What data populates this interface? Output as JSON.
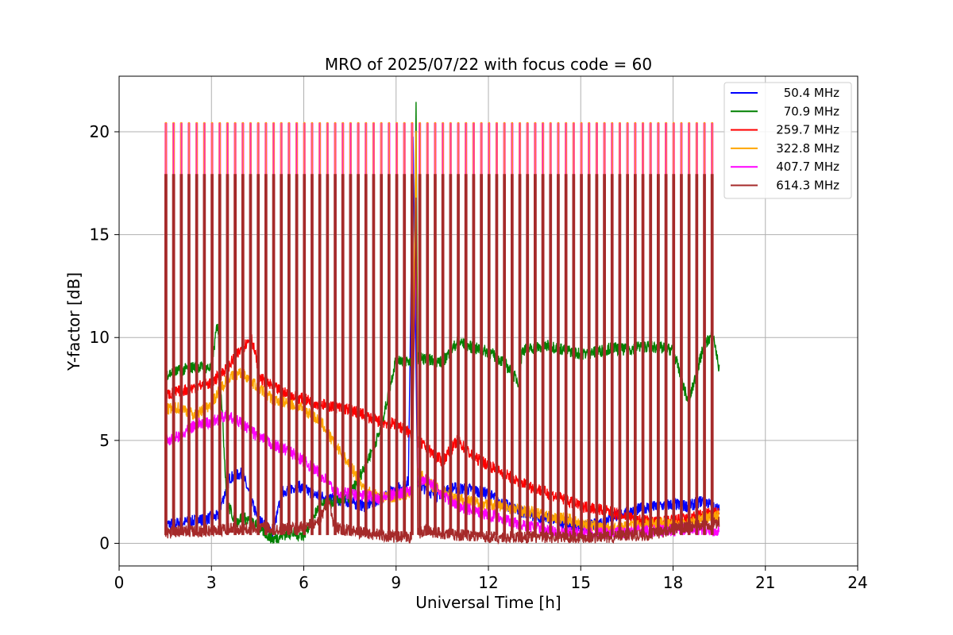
{
  "chart_data": {
    "type": "line",
    "title": "MRO of 2025/07/22 with focus code = 60",
    "xlabel": "Universal Time [h]",
    "ylabel": "Y-factor [dB]",
    "xlim": [
      0,
      24
    ],
    "ylim": [
      -1.1,
      22.7
    ],
    "xticks": [
      0,
      3,
      6,
      9,
      12,
      15,
      18,
      21,
      24
    ],
    "yticks": [
      0,
      5,
      10,
      15,
      20
    ],
    "grid": true,
    "legend_position": "top-right",
    "calibration_pulses": {
      "start_h": 1.5,
      "end_h": 19.3,
      "period_h": 0.25,
      "width_h": 0.04,
      "peak_db": {
        "magenta": 20.4,
        "brown": 17.9
      }
    },
    "series": [
      {
        "name": "50.4 MHz",
        "color": "#0000ff",
        "x": [
          1.5,
          2.5,
          3.2,
          3.6,
          4.0,
          4.5,
          5.0,
          5.3,
          5.8,
          6.3,
          6.8,
          7.5,
          8.0,
          8.5,
          9.0,
          9.4,
          9.55,
          9.62,
          9.7,
          9.8,
          10.3,
          10.8,
          11.5,
          12.0,
          12.5,
          13.0,
          13.5,
          14.0,
          14.5,
          15.0,
          15.5,
          16.0,
          16.5,
          17.0,
          17.5,
          18.0,
          18.5,
          19.0,
          19.5
        ],
        "y": [
          0.9,
          1.1,
          1.3,
          3.2,
          3.4,
          1.2,
          0.5,
          2.5,
          2.8,
          2.4,
          2.2,
          2.0,
          1.8,
          2.2,
          2.6,
          3.0,
          20.0,
          12.0,
          3.0,
          2.8,
          2.3,
          2.7,
          2.6,
          2.4,
          1.9,
          1.6,
          1.3,
          1.2,
          1.0,
          0.8,
          0.9,
          1.3,
          1.5,
          1.7,
          1.8,
          1.9,
          1.8,
          2.1,
          1.6
        ]
      },
      {
        "name": "70.9 MHz",
        "color": "#008000",
        "x": [
          1.5,
          2.0,
          2.5,
          3.0,
          3.2,
          3.5,
          3.8,
          4.0,
          4.5,
          5.0,
          5.5,
          6.0,
          6.5,
          7.0,
          7.5,
          8.0,
          8.5,
          9.0,
          9.5,
          9.6,
          9.65,
          9.7,
          9.8,
          10.5,
          11.0,
          11.5,
          12.0,
          12.5,
          13.0,
          13.1,
          13.5,
          14.0,
          14.5,
          15.0,
          15.5,
          16.0,
          16.5,
          17.0,
          17.5,
          18.0,
          18.5,
          19.0,
          19.3,
          19.5
        ],
        "y": [
          8.2,
          8.4,
          8.6,
          8.5,
          10.8,
          2.0,
          1.0,
          1.3,
          0.8,
          0.2,
          0.5,
          0.4,
          1.8,
          2.0,
          2.3,
          3.8,
          5.5,
          9.0,
          8.8,
          12.5,
          21.5,
          9.0,
          9.0,
          8.8,
          9.8,
          9.5,
          9.3,
          8.8,
          7.8,
          9.4,
          9.5,
          9.6,
          9.4,
          9.2,
          9.3,
          9.5,
          9.4,
          9.6,
          9.5,
          9.4,
          6.8,
          9.6,
          10.2,
          8.4
        ]
      },
      {
        "name": "259.7 MHz",
        "color": "#ff0000",
        "x": [
          1.5,
          2.0,
          2.5,
          3.0,
          3.5,
          4.0,
          4.3,
          4.6,
          5.0,
          5.5,
          6.0,
          6.5,
          7.0,
          7.5,
          8.0,
          8.5,
          9.0,
          9.5,
          9.65,
          9.7,
          10.0,
          10.5,
          11.0,
          11.5,
          12.0,
          12.5,
          13.0,
          13.5,
          14.0,
          14.5,
          15.0,
          15.5,
          16.0,
          16.5,
          17.0,
          17.5,
          18.0,
          18.5,
          19.0,
          19.5
        ],
        "y": [
          7.2,
          7.4,
          7.6,
          7.8,
          8.5,
          9.5,
          10.0,
          8.0,
          7.6,
          7.2,
          7.0,
          6.8,
          6.6,
          6.5,
          6.2,
          5.9,
          5.8,
          5.3,
          15.0,
          5.0,
          4.6,
          4.0,
          5.0,
          4.2,
          3.8,
          3.4,
          3.0,
          2.7,
          2.4,
          2.1,
          1.8,
          1.7,
          1.5,
          1.3,
          1.1,
          1.0,
          1.1,
          1.2,
          1.4,
          1.5
        ]
      },
      {
        "name": "322.8 MHz",
        "color": "#ffa500",
        "x": [
          1.5,
          2.0,
          2.5,
          3.0,
          3.5,
          4.0,
          4.5,
          5.0,
          5.5,
          6.0,
          6.3,
          6.6,
          7.0,
          7.5,
          8.0,
          8.5,
          9.0,
          9.5,
          9.65,
          9.7,
          10.0,
          10.5,
          11.0,
          11.5,
          12.0,
          12.5,
          13.0,
          13.5,
          14.0,
          14.5,
          15.0,
          15.5,
          16.0,
          16.5,
          17.0,
          17.5,
          18.0,
          18.5,
          19.0,
          19.5
        ],
        "y": [
          6.5,
          6.6,
          6.2,
          6.8,
          8.0,
          8.3,
          7.6,
          7.0,
          6.8,
          6.5,
          6.2,
          5.8,
          4.8,
          3.8,
          2.6,
          2.2,
          2.3,
          2.5,
          20.2,
          3.5,
          3.0,
          2.5,
          2.2,
          2.0,
          1.9,
          1.8,
          1.6,
          1.5,
          1.3,
          1.2,
          1.0,
          0.8,
          0.7,
          0.8,
          0.9,
          1.0,
          0.9,
          1.0,
          1.2,
          1.3
        ]
      },
      {
        "name": "407.7 MHz",
        "color": "#ff00ff",
        "x": [
          1.5,
          2.0,
          2.5,
          3.0,
          3.5,
          4.0,
          4.5,
          5.0,
          5.5,
          6.0,
          6.5,
          6.8,
          7.0,
          7.5,
          8.0,
          8.5,
          9.0,
          9.5,
          9.65,
          9.7,
          10.0,
          10.5,
          11.0,
          11.5,
          12.0,
          12.5,
          13.0,
          13.5,
          14.0,
          14.5,
          15.0,
          15.5,
          16.0,
          16.5,
          17.0,
          17.5,
          18.0,
          18.5,
          19.0,
          19.5
        ],
        "y": [
          5.0,
          5.2,
          5.8,
          5.9,
          6.2,
          5.8,
          5.2,
          4.8,
          4.5,
          4.0,
          3.4,
          3.0,
          2.5,
          2.4,
          2.3,
          2.2,
          2.4,
          2.6,
          15.0,
          3.0,
          3.1,
          2.4,
          1.8,
          1.6,
          1.4,
          1.2,
          0.9,
          0.8,
          0.6,
          0.5,
          0.5,
          0.5,
          0.5,
          0.5,
          0.6,
          0.6,
          0.6,
          0.7,
          0.7,
          0.6
        ]
      },
      {
        "name": "614.3 MHz",
        "color": "#a52a2a",
        "x": [
          1.5,
          2.0,
          2.5,
          3.0,
          3.5,
          4.0,
          4.5,
          5.0,
          5.5,
          6.0,
          6.5,
          6.8,
          7.0,
          7.5,
          8.0,
          8.5,
          9.0,
          9.5,
          9.65,
          9.7,
          10.0,
          10.5,
          11.0,
          11.5,
          12.0,
          12.5,
          13.0,
          13.5,
          14.0,
          14.5,
          15.0,
          15.5,
          16.0,
          16.5,
          17.0,
          17.5,
          18.0,
          18.5,
          19.0,
          19.5
        ],
        "y": [
          0.5,
          0.6,
          0.6,
          0.6,
          0.7,
          0.7,
          0.8,
          0.7,
          0.7,
          0.8,
          1.0,
          2.2,
          0.8,
          0.6,
          0.5,
          0.4,
          0.3,
          0.3,
          17.0,
          0.5,
          0.6,
          0.5,
          0.4,
          0.4,
          0.3,
          0.3,
          0.3,
          0.3,
          0.3,
          0.3,
          0.3,
          0.3,
          0.3,
          0.4,
          0.4,
          0.5,
          0.7,
          0.8,
          0.9,
          1.0
        ]
      }
    ]
  }
}
